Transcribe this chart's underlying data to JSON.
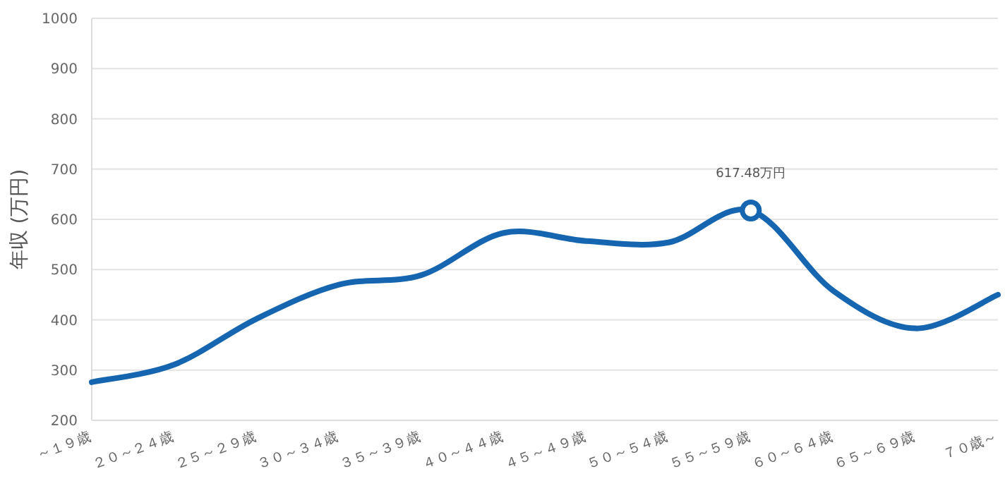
{
  "chart_data": {
    "type": "line",
    "ylabel": "年収 (万円)",
    "categories": [
      "～１９歳",
      "２０～２４歳",
      "２５～２９歳",
      "３０～３４歳",
      "３５～３９歳",
      "４０～４４歳",
      "４５～４９歳",
      "５０～５４歳",
      "５５～５９歳",
      "６０～６４歳",
      "６５～６９歳",
      "７０歳～"
    ],
    "series": [
      {
        "color": "#1565b0",
        "values": [
          276,
          311,
          402,
          470,
          489,
          573,
          557,
          554,
          617.48,
          458,
          383,
          450
        ]
      }
    ],
    "ylim": [
      200,
      1000
    ],
    "yticks": [
      200,
      300,
      400,
      500,
      600,
      700,
      800,
      900,
      1000
    ],
    "grid": "y",
    "marker": "none",
    "line_style": "solid",
    "annotations": [
      {
        "text": "617.48万円",
        "x": "５５～５９歳",
        "y": 617.48
      }
    ]
  }
}
